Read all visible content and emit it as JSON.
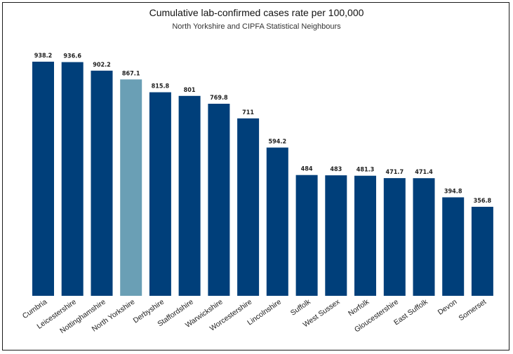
{
  "chart_data": {
    "type": "bar",
    "title": "Cumulative lab-confirmed cases rate per 100,000",
    "subtitle": "North Yorkshire and CIPFA Statistical Neighbours",
    "categories": [
      "Cumbria",
      "Leicestershire",
      "Nottinghamshire",
      "North Yorkshire",
      "Derbyshire",
      "Staffordshire",
      "Warwickshire",
      "Worcestershire",
      "Lincolnshire",
      "Suffolk",
      "West Sussex",
      "Norfolk",
      "Gloucestershire",
      "East Suffolk",
      "Devon",
      "Somerset"
    ],
    "values": [
      938.2,
      936.6,
      902.2,
      867.1,
      815.8,
      801,
      769.8,
      711,
      594.2,
      484,
      483,
      481.3,
      471.7,
      471.4,
      394.8,
      356.8
    ],
    "value_labels": [
      "938.2",
      "936.6",
      "902.2",
      "867.1",
      "815.8",
      "801",
      "769.8",
      "711",
      "594.2",
      "484",
      "483",
      "481.3",
      "471.7",
      "471.4",
      "394.8",
      "356.8"
    ],
    "highlight_category": "North Yorkshire",
    "ylim": [
      0,
      938.2
    ],
    "grid": false,
    "legend": "none",
    "colors": {
      "bar": "#003f7a",
      "highlight": "#6a9fb5"
    }
  }
}
